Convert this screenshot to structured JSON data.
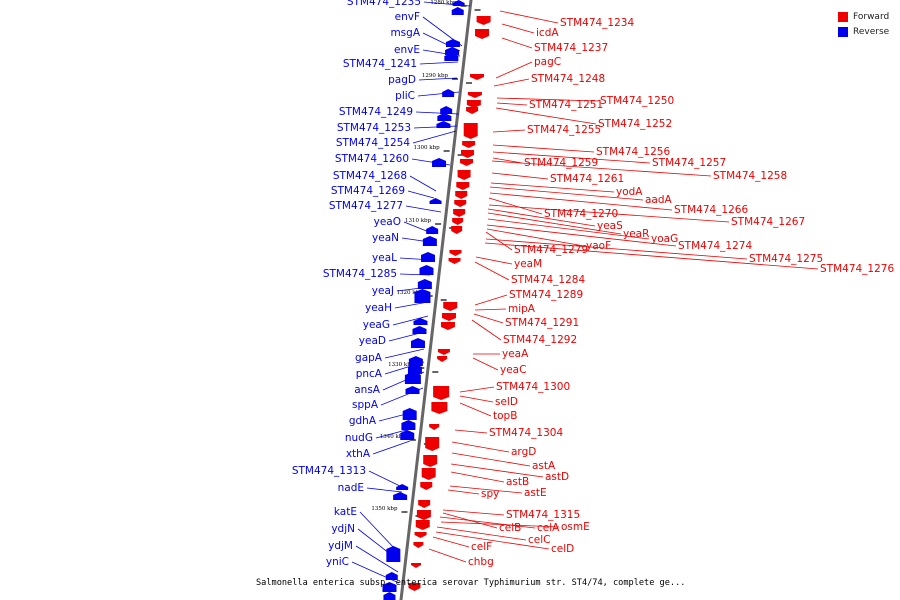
{
  "caption": "Salmonella enterica subsp. enterica serovar Typhimurium str. ST4/74, complete ge...",
  "legend": {
    "forward": {
      "label": "Forward",
      "color": "#ee0000"
    },
    "reverse": {
      "label": "Reverse",
      "color": "#0000ee"
    }
  },
  "colors": {
    "backbone": "#666666",
    "forward": "#ee0000",
    "reverse": "#0000ee"
  },
  "ticks": [
    "1280 kbp",
    "1290 kbp",
    "1300 kbp",
    "1310 kbp",
    "1320 kbp",
    "1330 kbp",
    "1340 kbp",
    "1350 kbp"
  ],
  "reverse_genes": [
    "STM474_1235",
    "envF",
    "msgA",
    "envE",
    "STM474_1241",
    "pagD",
    "pliC",
    "STM474_1249",
    "STM474_1253",
    "STM474_1254",
    "STM474_1260",
    "STM474_1268",
    "STM474_1269",
    "STM474_1277",
    "yeaO",
    "yeaN",
    "yeaL",
    "STM474_1285",
    "yeaJ",
    "yeaH",
    "yeaG",
    "yeaD",
    "gapA",
    "pncA",
    "ansA",
    "sppA",
    "gdhA",
    "nudG",
    "xthA",
    "STM474_1313",
    "nadE",
    "katE",
    "ydjN",
    "ydjM",
    "yniC"
  ],
  "forward_genes": [
    "STM474_1234",
    "icdA",
    "STM474_1237",
    "pagC",
    "STM474_1248",
    "STM474_1250",
    "STM474_1251",
    "STM474_1252",
    "STM474_1255",
    "STM474_1256",
    "STM474_1257",
    "STM474_1259",
    "STM474_1258",
    "STM474_1261",
    "yodA",
    "aadA",
    "STM474_1266",
    "STM474_1270",
    "STM474_1267",
    "yeaS",
    "yeaR",
    "yoaG",
    "STM474_1274",
    "STM474_1279",
    "yaoF",
    "STM474_1275",
    "yeaM",
    "STM474_1276",
    "STM474_1284",
    "STM474_1289",
    "mipA",
    "STM474_1291",
    "STM474_1292",
    "yeaA",
    "yeaC",
    "STM474_1300",
    "selD",
    "topB",
    "STM474_1304",
    "argD",
    "astA",
    "astD",
    "astB",
    "spy",
    "astE",
    "STM474_1315",
    "celB",
    "celA",
    "osmE",
    "celC",
    "celD",
    "celF",
    "chbg"
  ]
}
